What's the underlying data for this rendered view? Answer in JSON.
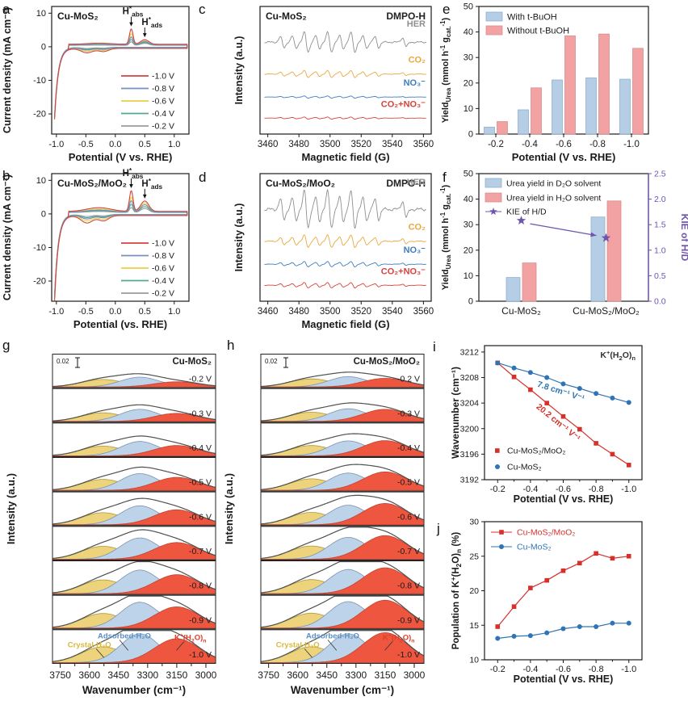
{
  "figure": {
    "letters": [
      "a",
      "b",
      "c",
      "d",
      "e",
      "f",
      "g",
      "h",
      "i",
      "j"
    ],
    "background": "#ffffff"
  },
  "chart_data": [
    {
      "panel": "a",
      "type": "line",
      "subtype": "cyclic_voltammetry",
      "title": "Cu-MoS₂",
      "xlabel": "Potential (V vs. RHE)",
      "ylabel": "Current density (mA cm⁻²)",
      "xlim": [
        -1.08,
        1.25
      ],
      "ylim": [
        -26,
        12
      ],
      "xticks": [
        -1.0,
        -0.5,
        0.0,
        0.5,
        1.0
      ],
      "yticks": [
        10,
        0,
        -10,
        -20
      ],
      "dip": 1.3,
      "loop": 0.3,
      "series": [
        {
          "name": "-1.0 V",
          "color": "#d5433d",
          "scale": 1.0,
          "min_current": -21.0,
          "habs_peak": 4.6,
          "hads_peak": 1.35
        },
        {
          "name": "-0.8 V",
          "color": "#7291c1",
          "scale": 0.55,
          "min_current": -20.6,
          "habs_peak": 2.4,
          "hads_peak": 1.0
        },
        {
          "name": "-0.6 V",
          "color": "#e8cf4a",
          "scale": 0.75,
          "min_current": -20.8,
          "habs_peak": 3.3,
          "hads_peak": 1.1
        },
        {
          "name": "-0.4 V",
          "color": "#55a695",
          "scale": 0.42,
          "min_current": -20.4,
          "habs_peak": 1.7,
          "hads_peak": 0.8
        },
        {
          "name": "-0.2 V",
          "color": "#9c9c9c",
          "scale": 0.28,
          "min_current": -20.2,
          "habs_peak": 1.1,
          "hads_peak": 0.6
        }
      ],
      "annotations": [
        {
          "text": "H*abs",
          "parts": [
            [
              "H",
              ""
            ],
            [
              "*",
              "sup"
            ],
            [
              "abs",
              "sub"
            ]
          ],
          "x": 0.27
        },
        {
          "text": "H*ads",
          "parts": [
            [
              "H",
              ""
            ],
            [
              "*",
              "sup"
            ],
            [
              "ads",
              "sub"
            ]
          ],
          "x": 0.5
        }
      ]
    },
    {
      "panel": "b",
      "type": "line",
      "subtype": "cyclic_voltammetry",
      "title": "Cu-MoS₂/MoO₂",
      "xlabel": "Potential (vs. RHE)",
      "ylabel": "Current density (mA cm⁻²)",
      "xlim": [
        -1.08,
        1.25
      ],
      "ylim": [
        -26,
        12
      ],
      "xticks": [
        -1.0,
        -0.5,
        0.0,
        0.5,
        1.0
      ],
      "yticks": [
        10,
        0,
        -10,
        -20
      ],
      "dip": 2.2,
      "loop": 1.1,
      "series": [
        {
          "name": "-1.0 V",
          "color": "#d5433d",
          "scale": 1.0,
          "min_current": -25.5,
          "habs_peak": 6.2,
          "hads_peak": 3.1
        },
        {
          "name": "-0.8 V",
          "color": "#7291c1",
          "scale": 0.55,
          "min_current": -24.5,
          "habs_peak": 3.4,
          "hads_peak": 2.2
        },
        {
          "name": "-0.6 V",
          "color": "#e8cf4a",
          "scale": 0.75,
          "min_current": -25.0,
          "habs_peak": 4.4,
          "hads_peak": 2.6
        },
        {
          "name": "-0.4 V",
          "color": "#55a695",
          "scale": 0.42,
          "min_current": -24.0,
          "habs_peak": 2.4,
          "hads_peak": 1.7
        },
        {
          "name": "-0.2 V",
          "color": "#9c9c9c",
          "scale": 0.28,
          "min_current": -23.8,
          "habs_peak": 1.5,
          "hads_peak": 1.2
        }
      ],
      "annotations": [
        {
          "text": "H*abs",
          "parts": [
            [
              "H",
              ""
            ],
            [
              "*",
              "sup"
            ],
            [
              "abs",
              "sub"
            ]
          ],
          "x": 0.27
        },
        {
          "text": "H*ads",
          "parts": [
            [
              "H",
              ""
            ],
            [
              "*",
              "sup"
            ],
            [
              "ads",
              "sub"
            ]
          ],
          "x": 0.5
        }
      ]
    },
    {
      "panel": "c",
      "type": "line",
      "subtype": "epr",
      "title": "Cu-MoS₂",
      "corner_label": "DMPO-H",
      "xlabel": "Magnetic field (G)",
      "ylabel": "Intensity (a.u.)",
      "xlim": [
        3455,
        3565
      ],
      "xticks": [
        3460,
        3480,
        3500,
        3520,
        3540,
        3560
      ],
      "line_centers": [
        3469.3,
        3477.0,
        3484.7,
        3492.0,
        3499.7,
        3507.4,
        3514.7,
        3522.4,
        3530.1,
        3547.8
      ],
      "line_rel_amps": [
        0.55,
        0.6,
        1,
        0.65,
        1,
        0.65,
        1,
        0.6,
        0.55,
        0.45
      ],
      "traces": [
        {
          "label": "HER",
          "color": "#8f8f8f",
          "amplitude": 13
        },
        {
          "label": "CO₂",
          "color": "#e9a93f",
          "amplitude": 4.5
        },
        {
          "label": "NO₃⁻",
          "color": "#3d7ebf",
          "amplitude": 1.4
        },
        {
          "label": "CO₂+NO₃⁻",
          "color": "#d9413c",
          "amplitude": 1.4
        }
      ]
    },
    {
      "panel": "d",
      "type": "line",
      "subtype": "epr",
      "title": "Cu-MoS₂/MoO₂",
      "corner_label": "DMPO-H",
      "xlabel": "Magnetic field (G)",
      "ylabel": "Intensity (a.u.)",
      "xlim": [
        3455,
        3565
      ],
      "xticks": [
        3460,
        3480,
        3500,
        3520,
        3540,
        3560
      ],
      "line_centers": [
        3469.3,
        3477.0,
        3484.7,
        3492.0,
        3499.7,
        3507.4,
        3514.7,
        3522.4,
        3530.1,
        3547.8
      ],
      "line_rel_amps": [
        0.55,
        0.6,
        1,
        0.65,
        1,
        0.65,
        1,
        0.6,
        0.55,
        0.45
      ],
      "traces": [
        {
          "label": "HER",
          "color": "#8f8f8f",
          "amplitude": 24
        },
        {
          "label": "CO₂",
          "color": "#e9a93f",
          "amplitude": 8
        },
        {
          "label": "NO₃⁻",
          "color": "#3d7ebf",
          "amplitude": 3.4
        },
        {
          "label": "CO₂+NO₃⁻",
          "color": "#d9413c",
          "amplitude": 3.4
        }
      ]
    },
    {
      "panel": "e",
      "type": "bar",
      "categories": [
        "-0.2",
        "-0.4",
        "-0.6",
        "-0.8",
        "-1.0"
      ],
      "xlabel": "Potential (V vs. RHE)",
      "ylabel": "Yield_Urea (mmol h⁻¹ g_cat.⁻¹)",
      "ylabel_rich": [
        [
          "Yield",
          ""
        ],
        [
          "Urea",
          "sub"
        ],
        [
          " (mmol h",
          ""
        ],
        [
          "-1",
          "sup"
        ],
        [
          " g",
          ""
        ],
        [
          "cat.",
          "sub"
        ],
        [
          "-1",
          "sup"
        ],
        [
          ")",
          ""
        ]
      ],
      "ylim": [
        0,
        50
      ],
      "yticks": [
        0,
        10,
        20,
        30,
        40,
        50
      ],
      "series": [
        {
          "name": "With t-BuOH",
          "color": "#b5cde5",
          "edge": "#8fb0cf",
          "values": [
            2.7,
            9.5,
            21.2,
            22.0,
            21.5
          ]
        },
        {
          "name": "Without t-BuOH",
          "color": "#f2a2a2",
          "edge": "#d98f8f",
          "values": [
            4.9,
            18.1,
            38.5,
            39.2,
            33.6
          ]
        }
      ]
    },
    {
      "panel": "f",
      "type": "bar_line",
      "categories": [
        "Cu-MoS₂",
        "Cu-MoS₂/MoO₂"
      ],
      "ylabel": "Yield_Urea (mmol h⁻¹ g_cat.⁻¹)",
      "ylabel_rich": [
        [
          "Yield",
          ""
        ],
        [
          "Urea",
          "sub"
        ],
        [
          " (mmol h",
          ""
        ],
        [
          "-1",
          "sup"
        ],
        [
          " g",
          ""
        ],
        [
          "cat.",
          "sub"
        ],
        [
          "-1",
          "sup"
        ],
        [
          ")",
          ""
        ]
      ],
      "ylim": [
        0,
        50
      ],
      "yticks": [
        0,
        10,
        20,
        30,
        40,
        50
      ],
      "y2label": "KIE of H/D",
      "y2lim": [
        0,
        2.5
      ],
      "y2ticks": [
        "0.0",
        "0.5",
        "1.0",
        "1.5",
        "2.0",
        "2.5"
      ],
      "series": [
        {
          "name": "Urea yield in D₂O solvent",
          "color": "#b5cde5",
          "edge": "#8fb0cf",
          "values": [
            9.3,
            33.0
          ]
        },
        {
          "name": "Urea yield in H₂O solvent",
          "color": "#f2a2a2",
          "edge": "#d98f8f",
          "values": [
            15.0,
            39.3
          ]
        }
      ],
      "kie": {
        "name": "KIE of H/D",
        "color": "#6f55ab",
        "values": [
          1.58,
          1.24
        ]
      }
    },
    {
      "panel": "g",
      "type": "area",
      "subtype": "ftir_deconvolution",
      "title": "Cu-MoS₂",
      "scale_bar": "0.02",
      "xlabel": "Wavenumber (cm⁻¹)",
      "ylabel": "Intensity (a.u.)",
      "xlim": [
        3790,
        2950
      ],
      "xticks": [
        3750,
        3600,
        3450,
        3300,
        3150,
        3000
      ],
      "components": [
        {
          "name": "Crystal-H₂O",
          "center": 3530,
          "width": 110,
          "fill": "#ecd37c",
          "edge": "#b0983c",
          "label_color": "#d8b93c"
        },
        {
          "name": "Adsorbed-H₂O",
          "center": 3340,
          "width": 100,
          "fill": "#bdd3ea",
          "edge": "#7d93ad",
          "label_color": "#5b8fc3"
        },
        {
          "name": "K⁺(H₂O)ₙ",
          "center": 3150,
          "width": 115,
          "fill": "#ee5640",
          "edge": "#c04430",
          "label_color": "#e03c2a"
        }
      ],
      "kplus_parts": [
        [
          "K",
          ""
        ],
        [
          "+",
          "sup"
        ],
        [
          "(H",
          ""
        ],
        [
          "2",
          "sub"
        ],
        [
          "O)",
          ""
        ],
        [
          "n",
          "sub"
        ]
      ],
      "rows": [
        {
          "label": "-0.2 V",
          "yellow": 0.26,
          "blue": 0.34,
          "red": 0.18
        },
        {
          "label": "-0.3 V",
          "yellow": 0.3,
          "blue": 0.42,
          "red": 0.28
        },
        {
          "label": "-0.4 V",
          "yellow": 0.34,
          "blue": 0.5,
          "red": 0.36
        },
        {
          "label": "-0.5 V",
          "yellow": 0.38,
          "blue": 0.58,
          "red": 0.45
        },
        {
          "label": "-0.6 V",
          "yellow": 0.42,
          "blue": 0.66,
          "red": 0.52
        },
        {
          "label": "-0.7 V",
          "yellow": 0.45,
          "blue": 0.74,
          "red": 0.58
        },
        {
          "label": "-0.8 V",
          "yellow": 0.48,
          "blue": 0.82,
          "red": 0.66
        },
        {
          "label": "-0.9 V",
          "yellow": 0.51,
          "blue": 0.9,
          "red": 0.74
        },
        {
          "label": "-1.0 V",
          "yellow": 0.55,
          "blue": 1.0,
          "red": 0.83
        }
      ]
    },
    {
      "panel": "h",
      "type": "area",
      "subtype": "ftir_deconvolution",
      "title": "Cu-MoS₂/MoO₂",
      "scale_bar": "0.02",
      "xlabel": "Wavenumber (cm⁻¹)",
      "ylabel": "Intensity (a.u.)",
      "xlim": [
        3790,
        2950
      ],
      "xticks": [
        3750,
        3600,
        3450,
        3300,
        3150,
        3000
      ],
      "components": [
        {
          "name": "Crystal-H₂O",
          "center": 3530,
          "width": 110,
          "fill": "#ecd37c",
          "edge": "#b0983c",
          "label_color": "#d8b93c"
        },
        {
          "name": "Adsorbed-H₂O",
          "center": 3340,
          "width": 100,
          "fill": "#bdd3ea",
          "edge": "#7d93ad",
          "label_color": "#5b8fc3"
        },
        {
          "name": "K⁺(H₂O)ₙ",
          "center": 3150,
          "width": 115,
          "fill": "#ee5640",
          "edge": "#c04430",
          "label_color": "#e03c2a"
        }
      ],
      "kplus_parts": [
        [
          "K",
          ""
        ],
        [
          "+",
          "sup"
        ],
        [
          "(H",
          ""
        ],
        [
          "2",
          "sub"
        ],
        [
          "O)",
          ""
        ],
        [
          "n",
          "sub"
        ]
      ],
      "rows": [
        {
          "label": "-0.2 V",
          "yellow": 0.28,
          "blue": 0.36,
          "red": 0.3
        },
        {
          "label": "-0.3 V",
          "yellow": 0.32,
          "blue": 0.44,
          "red": 0.42
        },
        {
          "label": "-0.4 V",
          "yellow": 0.36,
          "blue": 0.52,
          "red": 0.53
        },
        {
          "label": "-0.5 V",
          "yellow": 0.4,
          "blue": 0.6,
          "red": 0.64
        },
        {
          "label": "-0.6 V",
          "yellow": 0.43,
          "blue": 0.68,
          "red": 0.74
        },
        {
          "label": "-0.7 V",
          "yellow": 0.46,
          "blue": 0.76,
          "red": 0.82
        },
        {
          "label": "-0.8 V",
          "yellow": 0.49,
          "blue": 0.84,
          "red": 0.9
        },
        {
          "label": "-0.9 V",
          "yellow": 0.52,
          "blue": 0.92,
          "red": 0.97
        },
        {
          "label": "-1.0 V",
          "yellow": 0.55,
          "blue": 1.0,
          "red": 1.04
        }
      ]
    },
    {
      "panel": "i",
      "type": "scatter",
      "corner_label": "K⁺(H₂O)ₙ",
      "corner_parts": [
        [
          "K",
          ""
        ],
        [
          "+",
          "sup"
        ],
        [
          "(H",
          ""
        ],
        [
          "2",
          "sub"
        ],
        [
          "O)",
          ""
        ],
        [
          "n",
          "sub"
        ]
      ],
      "xlabel": "Potential (V vs. RHE)",
      "ylabel": "Wavenumber (cm⁻¹)",
      "x": [
        -0.2,
        -0.3,
        -0.4,
        -0.5,
        -0.6,
        -0.7,
        -0.8,
        -0.9,
        -1.0
      ],
      "xticks": [
        -0.2,
        -0.4,
        -0.6,
        -0.8,
        -1.0
      ],
      "ylim": [
        3192,
        3213
      ],
      "yticks": [
        3192,
        3196,
        3200,
        3204,
        3208,
        3212
      ],
      "legend_pos": "bottom-left",
      "series": [
        {
          "name": "Cu-MoS₂/MoO₂",
          "color": "#d6302b",
          "marker": "square",
          "values": [
            3210.3,
            3208.1,
            3206.1,
            3204.0,
            3201.9,
            3199.9,
            3197.7,
            3196.0,
            3194.3
          ],
          "slope_label": "20.2 cm⁻¹ V⁻¹"
        },
        {
          "name": "Cu-MoS₂",
          "color": "#2f74b5",
          "marker": "circle",
          "values": [
            3210.3,
            3209.5,
            3208.8,
            3208.0,
            3207.0,
            3206.3,
            3205.5,
            3204.8,
            3204.1
          ],
          "slope_label": "7.8 cm⁻¹ V⁻¹"
        }
      ]
    },
    {
      "panel": "j",
      "type": "scatter",
      "xlabel": "Potential (V vs. RHE)",
      "ylabel": "Population of K⁺(H₂O)ₙ (%)",
      "ylabel_rich": [
        [
          "Population of K",
          ""
        ],
        [
          "+",
          "sup"
        ],
        [
          "(H",
          ""
        ],
        [
          "2",
          "sub"
        ],
        [
          "O)",
          ""
        ],
        [
          "n",
          "sub"
        ],
        [
          " (%)",
          ""
        ]
      ],
      "x": [
        -0.2,
        -0.3,
        -0.4,
        -0.5,
        -0.6,
        -0.7,
        -0.8,
        -0.9,
        -1.0
      ],
      "xticks": [
        -0.2,
        -0.4,
        -0.6,
        -0.8,
        -1.0
      ],
      "ylim": [
        10,
        30
      ],
      "yticks": [
        10,
        15,
        20,
        25,
        30
      ],
      "legend_pos": "top-left",
      "series": [
        {
          "name": "Cu-MoS₂/MoO₂",
          "color": "#d6302b",
          "marker": "square",
          "values": [
            14.8,
            17.7,
            20.4,
            21.5,
            22.9,
            24.0,
            25.4,
            24.7,
            25.0
          ]
        },
        {
          "name": "Cu-MoS₂",
          "color": "#2f74b5",
          "marker": "circle",
          "values": [
            13.1,
            13.4,
            13.5,
            13.9,
            14.5,
            14.8,
            14.8,
            15.3,
            15.3
          ]
        }
      ]
    }
  ]
}
